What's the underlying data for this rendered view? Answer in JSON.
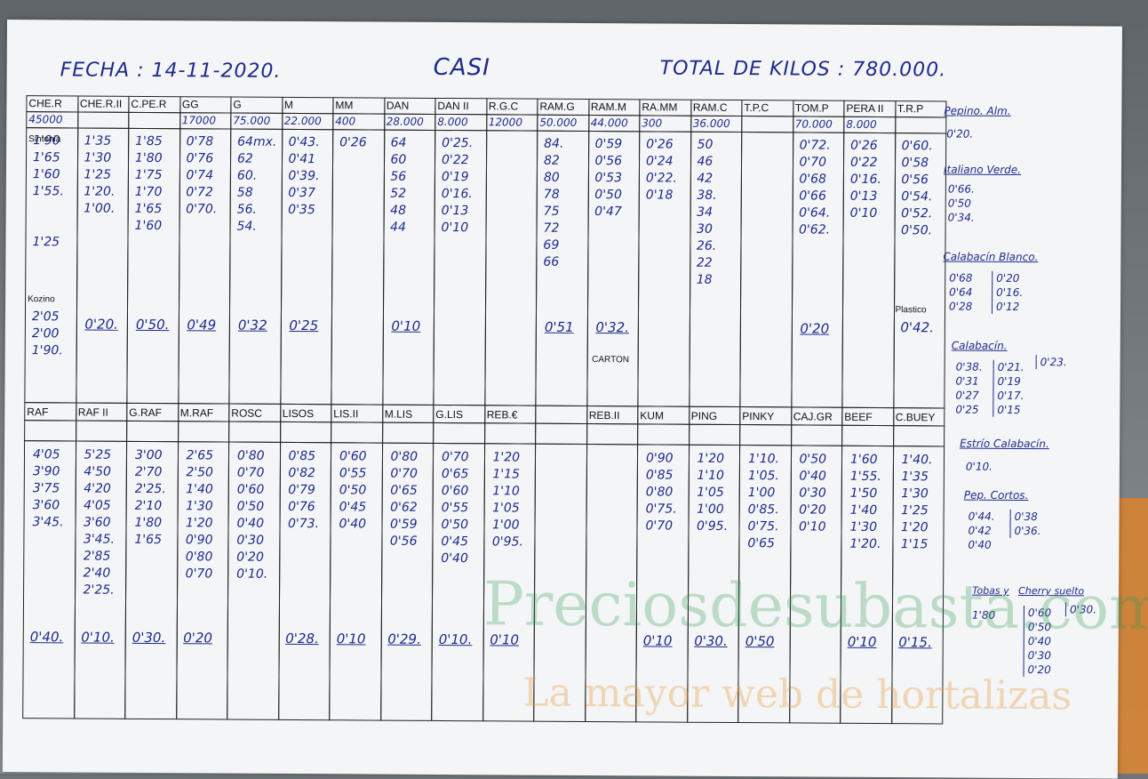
{
  "header": {
    "fecha": "FECHA : 14-11-2020.",
    "title": "CASI",
    "total": "TOTAL DE KILOS : 780.000."
  },
  "top_codes": [
    "CHE.R",
    "CHE.R.II",
    "C.PE.R",
    "GG",
    "G",
    "M",
    "MM",
    "DAN",
    "DAN II",
    "R.G.C",
    "RAM.G",
    "RAM.M",
    "RA.MM",
    "RAM.C",
    "T.P.C",
    "TOM.P",
    "PERA II",
    "T.R.P"
  ],
  "top_kilos": [
    "45000",
    "",
    "",
    "17000",
    "75.000",
    "22.000",
    "400",
    "28.000",
    "8.000",
    "12000",
    "50.000",
    "44.000",
    "300",
    "36.000",
    "",
    "70.000",
    "8.000",
    ""
  ],
  "top_lists": [
    "1'90\n1'65\n1'60\n1'55.\n\n\n1'25",
    "1'35\n1'30\n1'25\n1'20.\n1'00.",
    "1'85\n1'80\n1'75\n1'70\n1'65\n1'60",
    "0'78\n0'76\n0'74\n0'72\n0'70.",
    "64mx.\n62\n60.\n58\n56.\n54.",
    "0'43.\n0'41\n0'39.\n0'37\n0'35",
    "0'26",
    "64\n60\n56\n52\n48\n44",
    "0'25.\n0'22\n0'19\n0'16.\n0'13\n0'10",
    "",
    "84.\n82\n80\n78\n75\n72\n69\n66",
    "0'59\n0'56\n0'53\n0'50\n0'47",
    "0'26\n0'24\n0'22.\n0'18",
    "50\n46\n42\n38.\n34\n30\n26.\n22\n18",
    "",
    "0'72.\n0'70\n0'68\n0'66\n0'64.\n0'62.",
    "0'26\n0'22\n0'16.\n0'13\n0'10",
    "0'60.\n0'58\n0'56\n0'54.\n0'52.\n0'50."
  ],
  "top_finals": [
    "",
    "0'20.",
    "0'50.",
    "0'49",
    "0'32",
    "0'25",
    "",
    "0'10",
    "",
    "",
    "0'51",
    "0'32.",
    "",
    "",
    "",
    "0'20",
    "",
    ""
  ],
  "sintonia": "Sintonia",
  "kozino": "Kozino",
  "kozino_vals": "2'05\n2'00\n1'90.",
  "carton": "CARTON",
  "plastico": "Plastico",
  "plastico_val": "0'42.",
  "bottom_codes": [
    "RAF",
    "RAF II",
    "G.RAF",
    "M.RAF",
    "ROSC",
    "LISOS",
    "LIS.II",
    "M.LIS",
    "G.LIS",
    "REB.€",
    "",
    "REB.II",
    "KUM",
    "PING",
    "PINKY",
    "CAJ.GR",
    "BEEF",
    "C.BUEY"
  ],
  "bottom_lists": [
    "4'05\n3'90\n3'75\n3'60\n3'45.",
    "5'25\n4'50\n4'20\n4'05\n3'60\n3'45.\n2'85\n2'40\n2'25.",
    "3'00\n2'70\n2'25.\n2'10\n1'80\n1'65",
    "2'65\n2'50\n1'40\n1'30\n1'20\n0'90\n0'80\n0'70",
    "0'80\n0'70\n0'60\n0'50\n0'40\n0'30\n0'20\n0'10.",
    "0'85\n0'82\n0'79\n0'76\n0'73.",
    "0'60\n0'55\n0'50\n0'45\n0'40",
    "0'80\n0'70\n0'65\n0'62\n0'59\n0'56",
    "0'70\n0'65\n0'60\n0'55\n0'50\n0'45\n0'40",
    "1'20\n1'15\n1'10\n1'05\n1'00\n0'95.",
    "",
    "",
    "0'90\n0'85\n0'80\n0'75.\n0'70",
    "1'20\n1'10\n1'05\n1'00\n0'95.",
    "1'10.\n1'05.\n1'00\n0'85.\n0'75.\n0'65",
    "0'50\n0'40\n0'30\n0'20\n0'10",
    "1'60\n1'55.\n1'50\n1'40\n1'30\n1'20.",
    "1'40.\n1'35\n1'30\n1'25\n1'20\n1'15"
  ],
  "bottom_finals": [
    "0'40.",
    "0'10.",
    "0'30.",
    "0'20",
    "",
    "0'28.",
    "0'10",
    "0'29.",
    "0'10.",
    "0'10",
    "",
    "",
    "0'10",
    "0'30.",
    "0'50",
    "",
    "0'10",
    "0'15."
  ],
  "side": {
    "pepino_alm": "Pepino. Alm.",
    "pepino_alm_vals": "0'20.",
    "italiano_verde": "Italiano Verde.",
    "italiano_verde_vals": "0'66.\n0'50\n0'34.",
    "calabacin_blanco": "Calabacín Blanco.",
    "calabacin_blanco_a": "0'68\n0'64\n0'28",
    "calabacin_blanco_b": "0'20\n0'16.\n0'12",
    "calabacin": "Calabacín.",
    "calabacin_a": "0'38.\n0'31\n0'27\n0'25",
    "calabacin_b": "0'21.\n0'19\n0'17.\n0'15",
    "calabacin_c": "0'23.",
    "estrio": "Estrío Calabacín.",
    "estrio_vals": "0'10.",
    "pep_cortos": "Pep. Cortos.",
    "pep_cortos_a": "0'44.\n0'42\n0'40",
    "pep_cortos_b": "0'38\n0'36.",
    "tobas": "Tobas y",
    "cherry_suelto": "Cherry suelto",
    "tobas_val": "1'80",
    "cherry_a": "0'60\n0'50\n0'40\n0'30\n0'20",
    "cherry_b": "0'30."
  },
  "watermark": {
    "line1": "Preciosdesubasta.com",
    "line2": "La mayor web de hortalizas"
  }
}
